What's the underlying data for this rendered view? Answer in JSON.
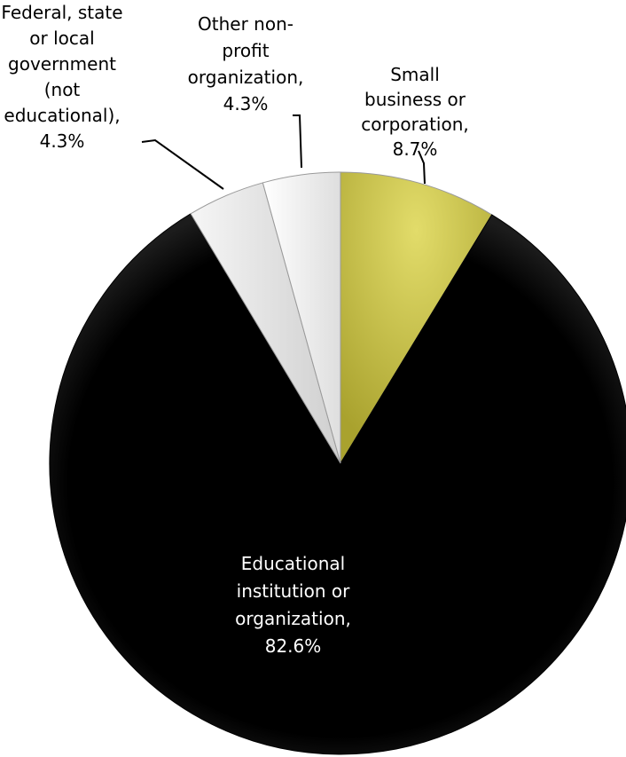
{
  "chart_data": {
    "type": "pie",
    "start_angle_deg": 0,
    "direction": "clockwise",
    "legend": "none",
    "slices": [
      {
        "label_lines": [
          "Small",
          "business or",
          "corporation,",
          "8.7%"
        ],
        "category": "Small business or corporation",
        "value": 8.7,
        "color": "#c6c04a"
      },
      {
        "label_lines": [
          "Educational",
          "institution or",
          "organization,",
          "82.6%"
        ],
        "category": "Educational institution or organization",
        "value": 82.6,
        "color": "#000000"
      },
      {
        "label_lines": [
          "Federal, state",
          "or local",
          "government",
          "(not",
          "educational),",
          "4.3%"
        ],
        "category": "Federal, state or local government (not educational)",
        "value": 4.3,
        "color": "#ededed"
      },
      {
        "label_lines": [
          "Other non-",
          "profit",
          "organization,",
          "4.3%"
        ],
        "category": "Other non-profit organization",
        "value": 4.3,
        "color": "#fafafa"
      }
    ]
  }
}
